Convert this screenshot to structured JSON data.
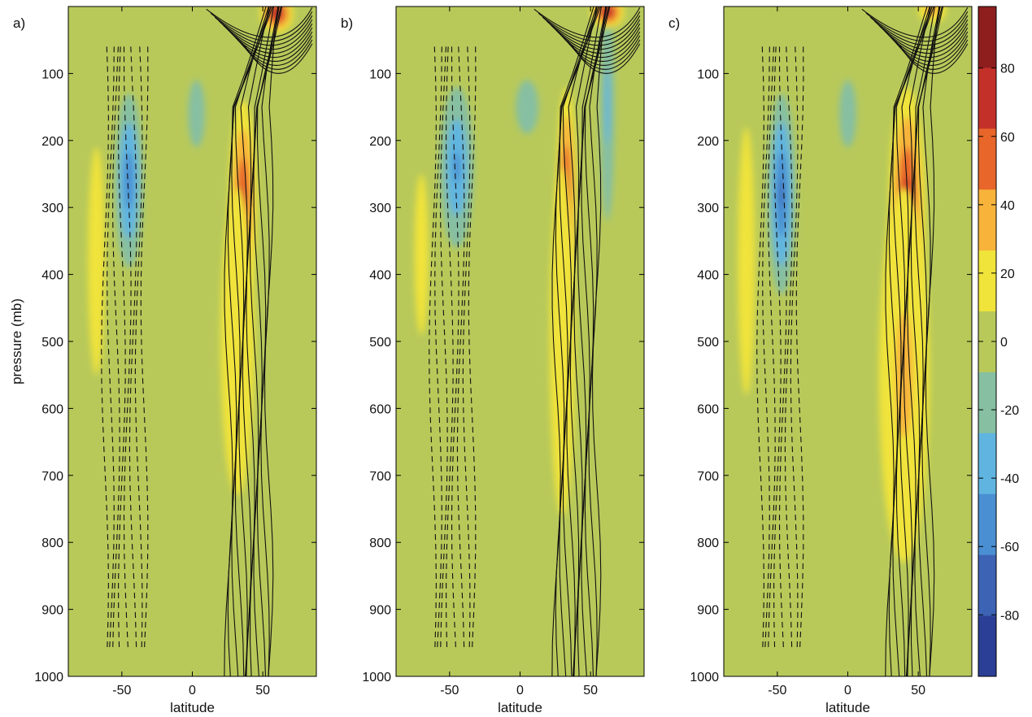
{
  "chart_data": {
    "type": "heatmap",
    "ylabel": "pressure (mb)",
    "xlabel": "latitude",
    "x_ticks": [
      -50,
      0,
      50
    ],
    "y_ticks": [
      100,
      200,
      300,
      400,
      500,
      600,
      700,
      800,
      900,
      1000
    ],
    "xlim": [
      -88,
      88
    ],
    "ylim": [
      1000,
      0
    ],
    "y_inverted": true,
    "colorbar": {
      "ticks": [
        80,
        60,
        40,
        20,
        0,
        -20,
        -40,
        -60,
        -80
      ],
      "range": [
        -98,
        98
      ],
      "colors": [
        "#2a3f95",
        "#3d63b4",
        "#4a8fd2",
        "#60b5e0",
        "#86bfa2",
        "#b8c95a",
        "#f0e33a",
        "#f7b33a",
        "#e8662a",
        "#c3302a",
        "#8e1e1e"
      ]
    },
    "contours": {
      "style": "solid lines positive, dashed lines negative"
    },
    "panels": [
      {
        "label": "a)",
        "features": [
          {
            "lat": -45,
            "p": 260,
            "value": -60,
            "rx": 10,
            "ry": 130
          },
          {
            "lat": -68,
            "p": 380,
            "value": 18,
            "rx": 6,
            "ry": 170
          },
          {
            "lat": 3,
            "p": 160,
            "value": -22,
            "rx": 6,
            "ry": 50
          },
          {
            "lat": 36,
            "p": 290,
            "value": 65,
            "rx": 10,
            "ry": 150
          },
          {
            "lat": 32,
            "p": 500,
            "value": 22,
            "rx": 12,
            "ry": 230
          },
          {
            "lat": 60,
            "p": 10,
            "value": 90,
            "rx": 12,
            "ry": 30
          }
        ]
      },
      {
        "label": "b)",
        "features": [
          {
            "lat": -45,
            "p": 240,
            "value": -45,
            "rx": 12,
            "ry": 120
          },
          {
            "lat": -70,
            "p": 370,
            "value": 12,
            "rx": 5,
            "ry": 120
          },
          {
            "lat": 5,
            "p": 150,
            "value": -20,
            "rx": 8,
            "ry": 40
          },
          {
            "lat": 33,
            "p": 270,
            "value": 65,
            "rx": 7,
            "ry": 150
          },
          {
            "lat": 30,
            "p": 500,
            "value": 18,
            "rx": 9,
            "ry": 260
          },
          {
            "lat": 62,
            "p": 150,
            "value": -30,
            "rx": 5,
            "ry": 170
          },
          {
            "lat": 62,
            "p": 8,
            "value": 85,
            "rx": 12,
            "ry": 25
          }
        ]
      },
      {
        "label": "c)",
        "features": [
          {
            "lat": -47,
            "p": 280,
            "value": -65,
            "rx": 10,
            "ry": 150
          },
          {
            "lat": -72,
            "p": 380,
            "value": 22,
            "rx": 6,
            "ry": 200
          },
          {
            "lat": 0,
            "p": 160,
            "value": -18,
            "rx": 6,
            "ry": 50
          },
          {
            "lat": 42,
            "p": 300,
            "value": 75,
            "rx": 13,
            "ry": 180
          },
          {
            "lat": 40,
            "p": 550,
            "value": 25,
            "rx": 18,
            "ry": 280
          },
          {
            "lat": 60,
            "p": 5,
            "value": 40,
            "rx": 10,
            "ry": 20
          }
        ]
      }
    ]
  }
}
